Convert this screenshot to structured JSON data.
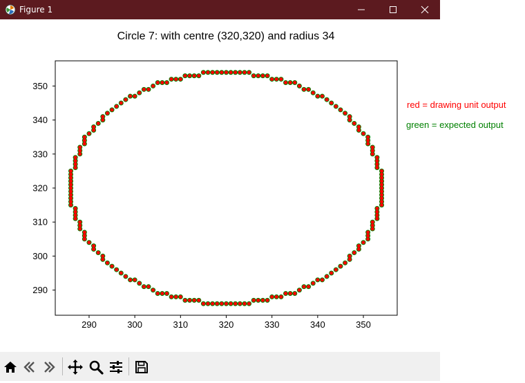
{
  "window": {
    "title": "Figure 1",
    "icons": {
      "app": "matplotlib-icon",
      "minimize": "minimize-icon",
      "maximize": "maximize-icon",
      "close": "close-icon"
    }
  },
  "legend": {
    "red": "red = drawing unit output",
    "green": "green = expected output"
  },
  "toolbar": {
    "buttons": [
      "home-icon",
      "back-icon",
      "forward-icon",
      "pan-icon",
      "zoom-icon",
      "configure-subplots-icon",
      "save-icon"
    ]
  },
  "chart_data": {
    "type": "scatter",
    "title": "Circle 7: with centre (320,320) and radius 34",
    "xlabel": "",
    "ylabel": "",
    "xlim": [
      282.6,
      357.4
    ],
    "ylim": [
      282.6,
      357.4
    ],
    "xticks": [
      290,
      300,
      310,
      320,
      330,
      340,
      350
    ],
    "yticks": [
      290,
      300,
      310,
      320,
      330,
      340,
      350
    ],
    "grid": false,
    "circle": {
      "cx": 320,
      "cy": 320,
      "r": 34
    },
    "series": [
      {
        "name": "green = expected output",
        "color": "#008000",
        "marker_size": 7
      },
      {
        "name": "red = drawing unit output",
        "color": "#ff0000",
        "marker_size": 5
      }
    ],
    "colors": {
      "red": "#ff0000",
      "green": "#008000"
    }
  }
}
